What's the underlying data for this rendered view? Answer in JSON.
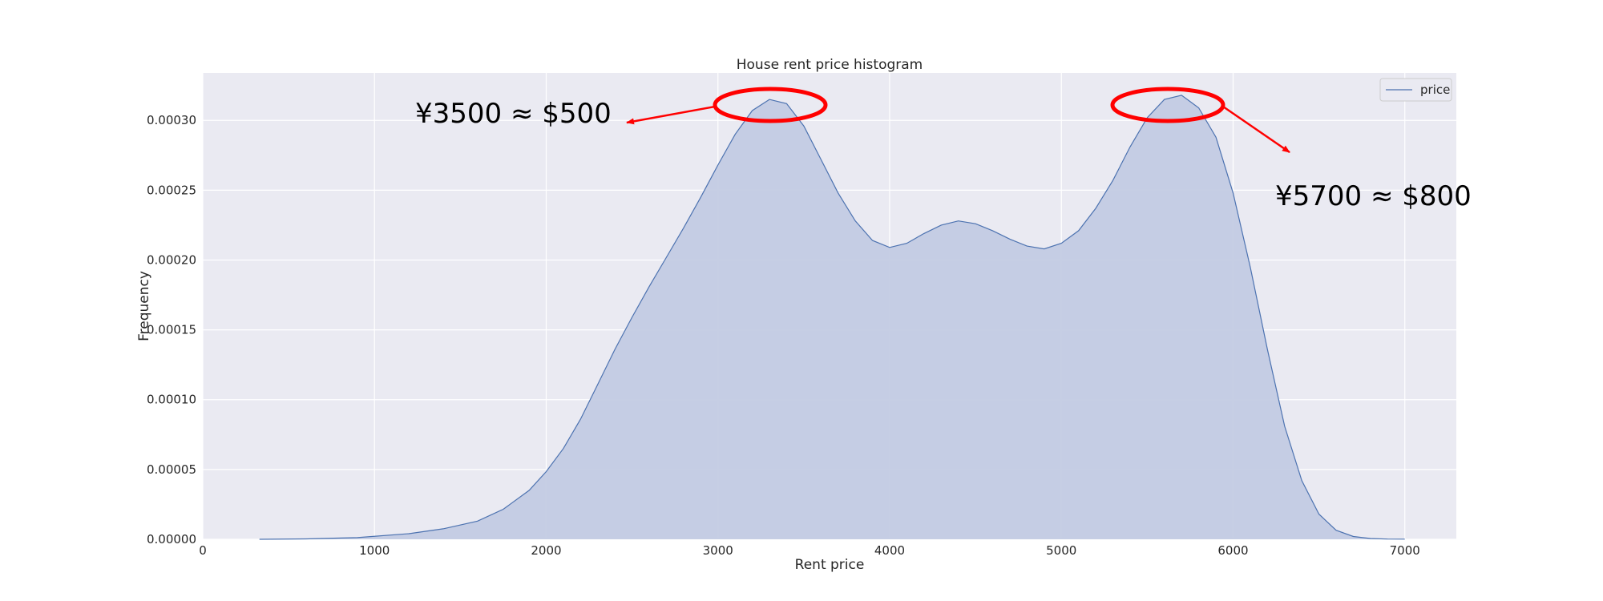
{
  "chart_data": {
    "type": "area",
    "title": "House rent price histogram",
    "xlabel": "Rent price",
    "ylabel": "Frequency",
    "xlim": [
      0,
      7300
    ],
    "ylim": [
      0,
      0.000334
    ],
    "x_ticks": [
      0,
      1000,
      2000,
      3000,
      4000,
      5000,
      6000,
      7000
    ],
    "y_ticks": [
      0.0,
      5e-05,
      0.0001,
      0.00015,
      0.0002,
      0.00025,
      0.0003
    ],
    "y_tick_labels": [
      "0.00000",
      "0.00005",
      "0.00010",
      "0.00015",
      "0.00020",
      "0.00025",
      "0.00030"
    ],
    "grid": true,
    "legend_position": "top-right",
    "series": [
      {
        "name": "price",
        "x": [
          330,
          600,
          900,
          1200,
          1400,
          1600,
          1750,
          1900,
          2000,
          2100,
          2200,
          2300,
          2400,
          2500,
          2600,
          2700,
          2800,
          2900,
          3000,
          3100,
          3200,
          3300,
          3400,
          3500,
          3600,
          3700,
          3800,
          3900,
          4000,
          4100,
          4200,
          4300,
          4400,
          4500,
          4600,
          4700,
          4800,
          4900,
          5000,
          5100,
          5200,
          5300,
          5400,
          5500,
          5600,
          5700,
          5800,
          5900,
          6000,
          6100,
          6200,
          6300,
          6400,
          6500,
          6600,
          6700,
          6800,
          6900,
          7000
        ],
        "y": [
          0.0,
          3e-07,
          1.2e-06,
          4e-06,
          7.5e-06,
          1.3e-05,
          2.15e-05,
          3.5e-05,
          4.85e-05,
          6.5e-05,
          8.6e-05,
          0.000111,
          0.000136,
          0.000159,
          0.000181,
          0.000202,
          0.000223,
          0.000245,
          0.000268,
          0.00029,
          0.000307,
          0.000315,
          0.000312,
          0.000296,
          0.000272,
          0.000248,
          0.000228,
          0.000214,
          0.000209,
          0.000212,
          0.000219,
          0.000225,
          0.000228,
          0.000226,
          0.000221,
          0.000215,
          0.00021,
          0.000208,
          0.000212,
          0.000221,
          0.000237,
          0.000257,
          0.000281,
          0.000302,
          0.000315,
          0.000318,
          0.000309,
          0.000288,
          0.000248,
          0.000195,
          0.000136,
          8.1e-05,
          4.2e-05,
          1.8e-05,
          6.5e-06,
          2e-06,
          6e-07,
          2e-07,
          1e-07
        ]
      }
    ],
    "colors": {
      "line": "#4c72b0",
      "fill": "#c3cbe3",
      "plot_bg": "#eaeaf2",
      "grid": "#ffffff",
      "annotation": "#ff0000"
    },
    "annotations": [
      {
        "text": "¥3500 ≈ $500",
        "peak_x": 3300,
        "peak_y": 0.000315
      },
      {
        "text": "¥5700 ≈ $800",
        "peak_x": 5620,
        "peak_y": 0.000318
      }
    ]
  }
}
